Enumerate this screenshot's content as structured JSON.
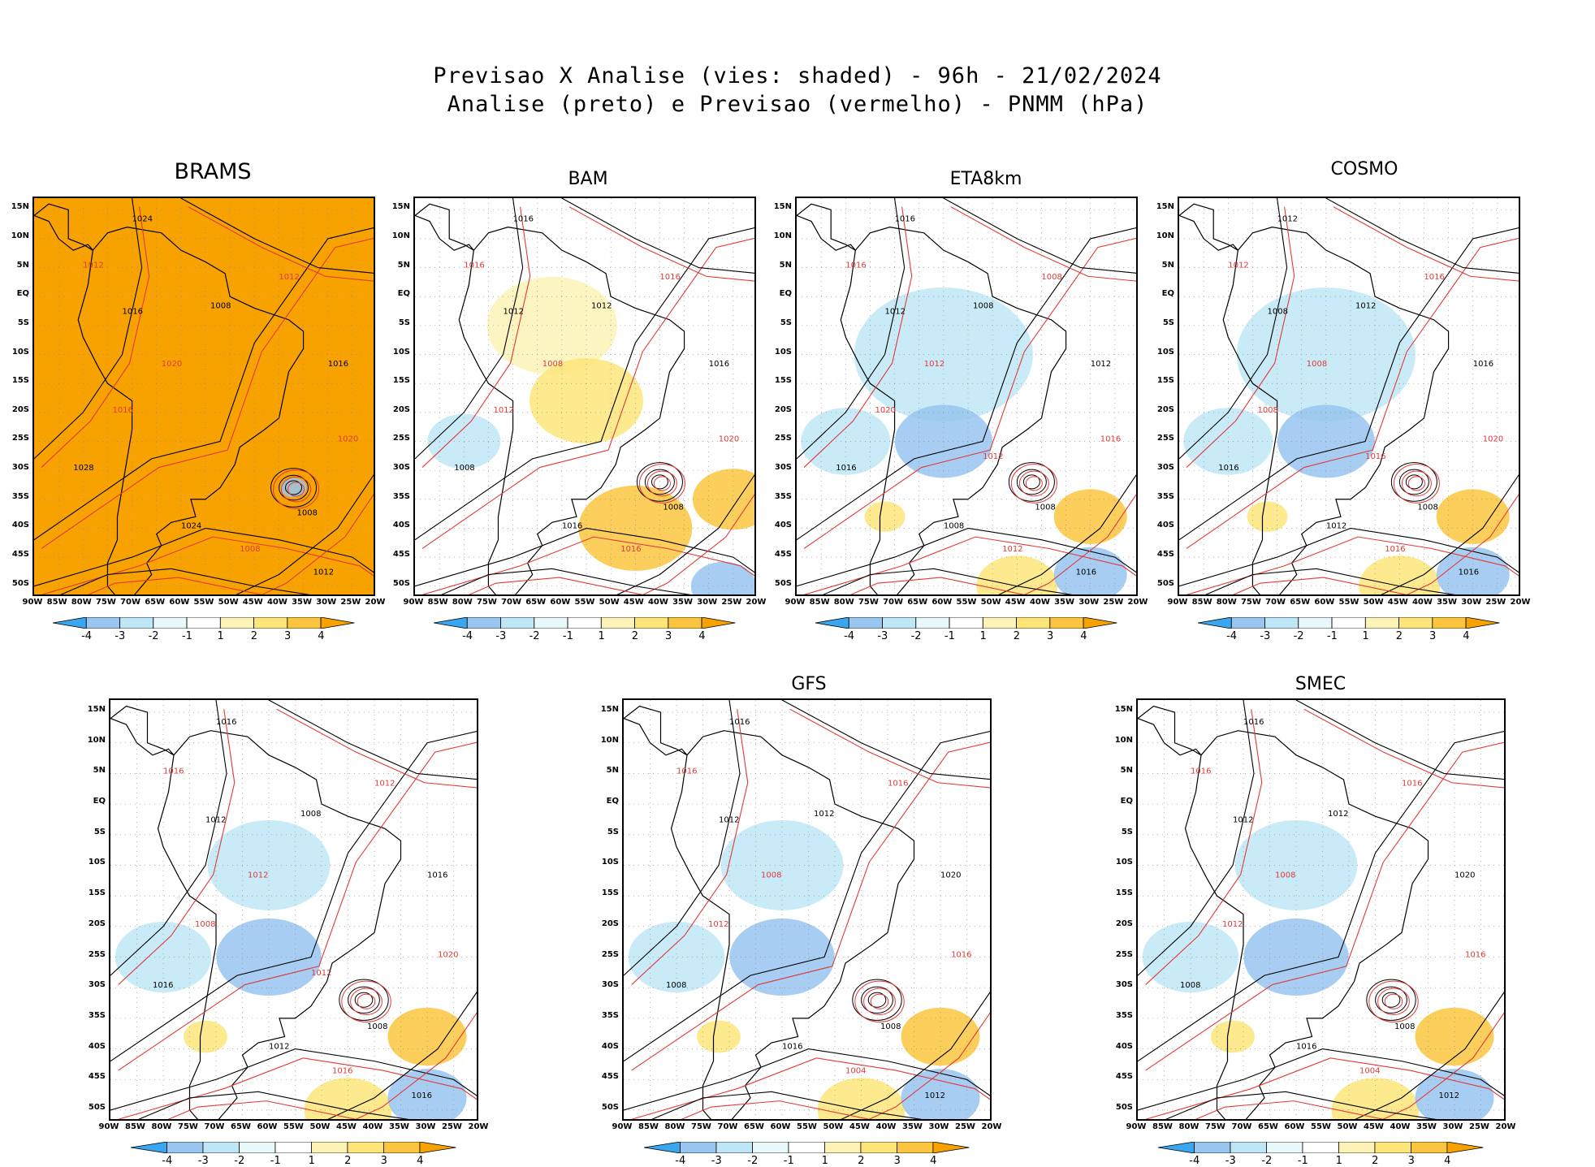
{
  "header": {
    "line1": "Previsao X Analise (vies: shaded) - 96h - 21/02/2024",
    "line2": "Analise (preto) e Previsao (vermelho) - PNMM (hPa)"
  },
  "colors": {
    "bias_neg4": "#3aa6ef",
    "bias_neg3": "#98c6f0",
    "bias_neg2": "#bfe6f6",
    "bias_neg1": "#e8f8fb",
    "bias_zero": "#ffffff",
    "bias_pos1": "#fdf3b6",
    "bias_pos2": "#fde57a",
    "bias_pos3": "#fbc540",
    "bias_pos4": "#f8a200",
    "analysis_contour": "#000000",
    "forecast_contour": "#e03a3a"
  },
  "axes": {
    "lat_ticks": [
      "15N",
      "10N",
      "5N",
      "EQ",
      "5S",
      "10S",
      "15S",
      "20S",
      "25S",
      "30S",
      "35S",
      "40S",
      "45S",
      "50S"
    ],
    "lon_ticks": [
      "90W",
      "85W",
      "80W",
      "75W",
      "70W",
      "65W",
      "60W",
      "55W",
      "50W",
      "45W",
      "40W",
      "35W",
      "30W",
      "25W",
      "20W"
    ]
  },
  "colorbar": {
    "labels": [
      "-4",
      "-3",
      "-2",
      "-1",
      "1",
      "2",
      "3",
      "4"
    ]
  },
  "chart_data": [
    {
      "type": "heatmap",
      "title": "BRAMS",
      "variable": "PNMM bias (hPa)",
      "lat_range": [
        -52,
        17
      ],
      "lon_range": [
        -90,
        -20
      ],
      "dominant_bias": 4,
      "contour_labels": [
        "1024",
        "1012",
        "1016",
        "1020",
        "1008",
        "1012",
        "1016",
        "1020",
        "1028",
        "1016",
        "1024",
        "1008",
        "1012"
      ],
      "lows": [
        {
          "lat": -33,
          "lon": -37,
          "label": "1008"
        }
      ]
    },
    {
      "type": "heatmap",
      "title": "BAM",
      "variable": "PNMM bias (hPa)",
      "lat_range": [
        -52,
        17
      ],
      "lon_range": [
        -90,
        -20
      ],
      "dominant_bias": 1,
      "contour_labels": [
        "1016",
        "1016",
        "1012",
        "1008",
        "1012",
        "1016",
        "1016",
        "1020",
        "1008",
        "1012",
        "1016",
        "1016"
      ],
      "lows": [
        {
          "lat": -32,
          "lon": -40,
          "label": "1008"
        }
      ]
    },
    {
      "type": "heatmap",
      "title": "ETA8km",
      "variable": "PNMM bias (hPa)",
      "lat_range": [
        -52,
        17
      ],
      "lon_range": [
        -90,
        -20
      ],
      "dominant_bias": -2,
      "contour_labels": [
        "1016",
        "1016",
        "1012",
        "1012",
        "1008",
        "1008",
        "1012",
        "1016",
        "1016",
        "1020",
        "1008",
        "1012",
        "1016",
        "1012"
      ],
      "lows": [
        {
          "lat": -32,
          "lon": -42,
          "label": "1008"
        }
      ]
    },
    {
      "type": "heatmap",
      "title": "COSMO",
      "variable": "PNMM bias (hPa)",
      "lat_range": [
        -52,
        17
      ],
      "lon_range": [
        -90,
        -20
      ],
      "dominant_bias": -2,
      "contour_labels": [
        "1012",
        "1012",
        "1008",
        "1008",
        "1012",
        "1016",
        "1016",
        "1020",
        "1016",
        "1008",
        "1012",
        "1016",
        "1016",
        "1016"
      ],
      "lows": [
        {
          "lat": -32,
          "lon": -42,
          "label": "1008"
        }
      ]
    },
    {
      "type": "heatmap",
      "title": "",
      "variable": "PNMM bias (hPa)",
      "lat_range": [
        -52,
        17
      ],
      "lon_range": [
        -90,
        -20
      ],
      "dominant_bias": -1,
      "contour_labels": [
        "1016",
        "1016",
        "1012",
        "1012",
        "1008",
        "1012",
        "1016",
        "1020",
        "1016",
        "1008",
        "1012",
        "1016",
        "1016",
        "1012"
      ],
      "lows": [
        {
          "lat": -32,
          "lon": -42,
          "label": "1008"
        }
      ]
    },
    {
      "type": "heatmap",
      "title": "GFS",
      "variable": "PNMM bias (hPa)",
      "lat_range": [
        -52,
        17
      ],
      "lon_range": [
        -90,
        -20
      ],
      "dominant_bias": -1,
      "contour_labels": [
        "1016",
        "1016",
        "1012",
        "1008",
        "1012",
        "1016",
        "1020",
        "1016",
        "1008",
        "1012",
        "1016",
        "1004",
        "1012"
      ],
      "lows": [
        {
          "lat": -32,
          "lon": -42,
          "label": "1008"
        }
      ]
    },
    {
      "type": "heatmap",
      "title": "SMEC",
      "variable": "PNMM bias (hPa)",
      "lat_range": [
        -52,
        17
      ],
      "lon_range": [
        -90,
        -20
      ],
      "dominant_bias": -1,
      "contour_labels": [
        "1016",
        "1016",
        "1012",
        "1008",
        "1012",
        "1016",
        "1020",
        "1016",
        "1008",
        "1012",
        "1016",
        "1004",
        "1012"
      ],
      "lows": [
        {
          "lat": -32,
          "lon": -42,
          "label": "1008"
        }
      ]
    }
  ]
}
